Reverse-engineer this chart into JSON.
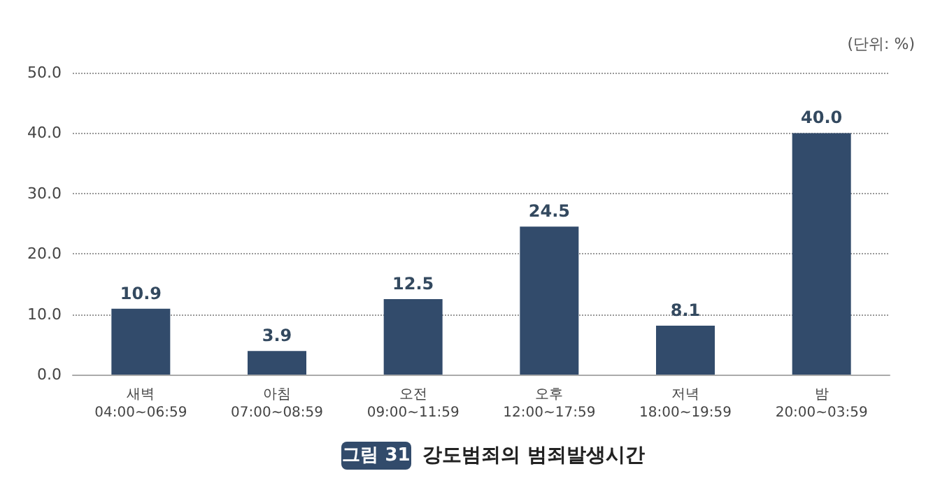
{
  "chart_data": {
    "type": "bar",
    "title": "그림 31",
    "subtitle": "강도범죄의 범죄발생시간",
    "annotations": [
      "(단위: %)"
    ],
    "categories": [
      "새벽\n04:00~06:59",
      "아침\n07:00~08:59",
      "오전\n09:00~11:59",
      "오후\n12:00~17:59",
      "저녁\n18:00~19:59",
      "밤\n20:00~03:59"
    ],
    "values": [
      10.9,
      3.9,
      12.5,
      24.5,
      8.1,
      40.0
    ],
    "value_labels": [
      "10.9",
      "3.9",
      "12.5",
      "24.5",
      "8.1",
      "40.0"
    ],
    "color": "#324b6b",
    "ylim": [
      0,
      50
    ],
    "yticks": [
      {
        "value": 0,
        "label": "0.0"
      },
      {
        "value": 10,
        "label": "10.0"
      },
      {
        "value": 20,
        "label": "20.0"
      },
      {
        "value": 30,
        "label": "30.0"
      },
      {
        "value": 40,
        "label": "40.0"
      },
      {
        "value": 50,
        "label": "50.0"
      }
    ],
    "grid": "y"
  }
}
